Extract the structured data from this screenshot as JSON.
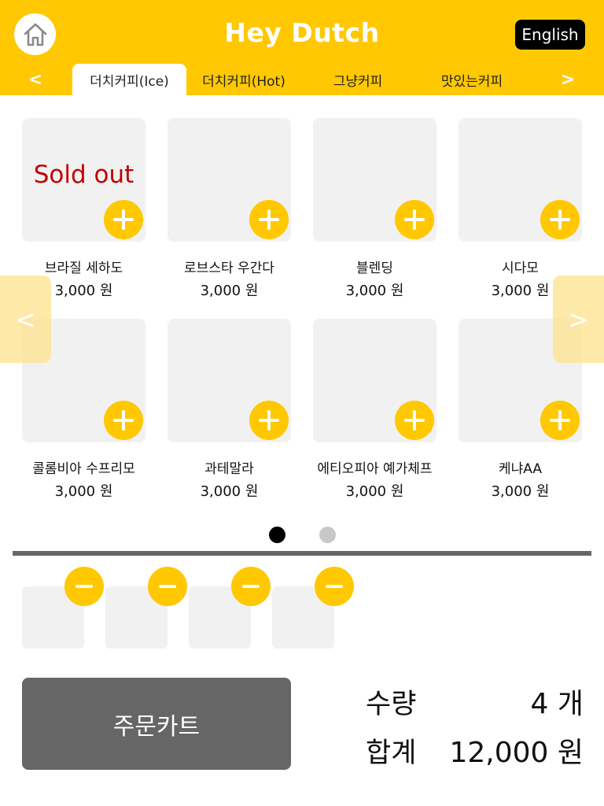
{
  "header": {
    "title": "Hey Dutch",
    "language_button": "English",
    "home_icon": "home-icon",
    "accent_color": "#FFC800"
  },
  "categories": {
    "prev": "<",
    "next": ">",
    "tabs": [
      {
        "label": "더치커피(Ice)",
        "active": true
      },
      {
        "label": "더치커피(Hot)",
        "active": false
      },
      {
        "label": "그냥커피",
        "active": false
      },
      {
        "label": "맛있는커피",
        "active": false
      }
    ]
  },
  "products": [
    {
      "name": "브라질 세하도",
      "price": "3,000 원",
      "status": "Sold out"
    },
    {
      "name": "로브스타 우간다",
      "price": "3,000 원",
      "status": ""
    },
    {
      "name": "블렌딩",
      "price": "3,000 원",
      "status": ""
    },
    {
      "name": "시다모",
      "price": "3,000 원",
      "status": ""
    },
    {
      "name": "콜롬비아 수프리모",
      "price": "3,000 원",
      "status": ""
    },
    {
      "name": "과테말라",
      "price": "3,000 원",
      "status": ""
    },
    {
      "name": "에티오피아 예가체프",
      "price": "3,000 원",
      "status": ""
    },
    {
      "name": "케냐AA",
      "price": "3,000 원",
      "status": ""
    }
  ],
  "pager": {
    "prev": "<",
    "next": ">",
    "pages": 2,
    "current": 1
  },
  "cart": {
    "items": 4,
    "order_button": "주문카트",
    "quantity_label": "수량",
    "quantity_value": "4 개",
    "total_label": "합계",
    "total_value": "12,000 원"
  }
}
